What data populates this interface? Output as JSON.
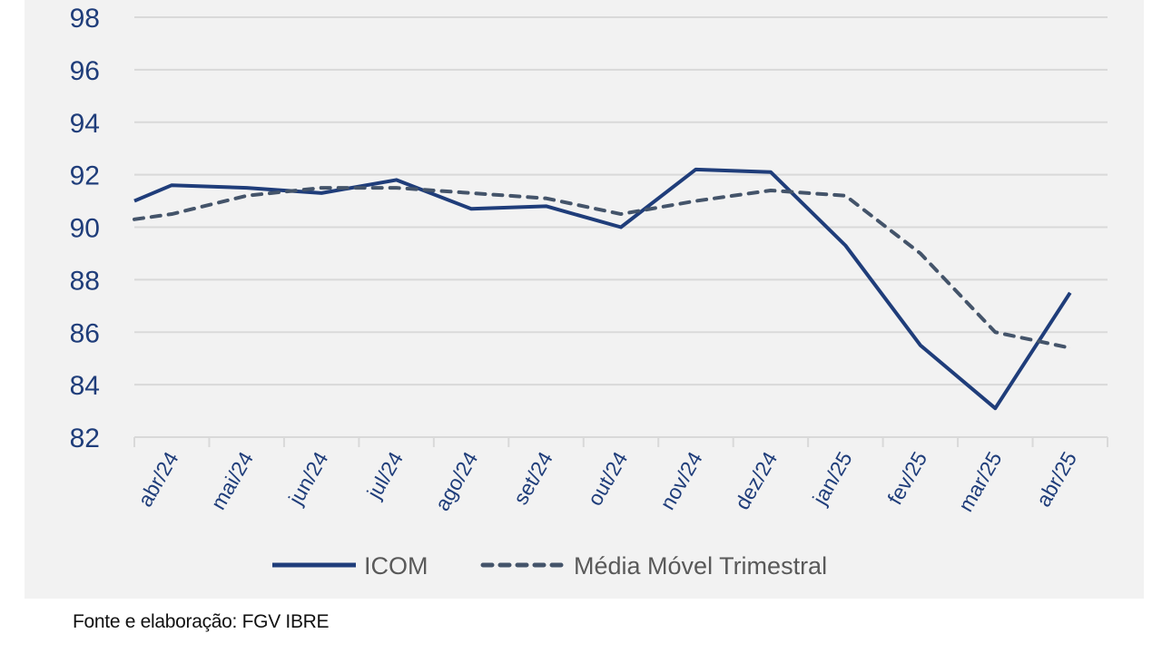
{
  "chart_data": {
    "type": "line",
    "title": "",
    "xlabel": "",
    "ylabel": "",
    "ylim": [
      82,
      98
    ],
    "yticks": [
      "98",
      "96",
      "94",
      "92",
      "90",
      "88",
      "86",
      "84",
      "82"
    ],
    "ytick_values": [
      98,
      96,
      94,
      92,
      90,
      88,
      86,
      84,
      82
    ],
    "grid": true,
    "legend_position": "bottom",
    "categories": [
      "abr/24",
      "mai/24",
      "jun/24",
      "jul/24",
      "ago/24",
      "set/24",
      "out/24",
      "nov/24",
      "dez/24",
      "jan/25",
      "fev/25",
      "mar/25",
      "abr/25"
    ],
    "series": [
      {
        "name": "ICOM",
        "style": "solid",
        "color": "#1f3d7a",
        "edge_start": 91.0,
        "values": [
          91.6,
          91.5,
          91.3,
          91.8,
          90.7,
          90.8,
          90.0,
          92.2,
          92.1,
          89.3,
          85.5,
          83.1,
          87.5
        ]
      },
      {
        "name": "Média Móvel Trimestral",
        "style": "dashed",
        "color": "#44546a",
        "edge_start": 90.3,
        "values": [
          90.5,
          91.2,
          91.5,
          91.5,
          91.3,
          91.1,
          90.5,
          91.0,
          91.4,
          91.2,
          89.0,
          86.0,
          85.4
        ]
      }
    ]
  },
  "colors": {
    "axis_text": "#1f3d7a",
    "grid": "#d9d9d9",
    "panel": "#f2f2f2"
  },
  "source": "Fonte e elaboração: FGV IBRE"
}
